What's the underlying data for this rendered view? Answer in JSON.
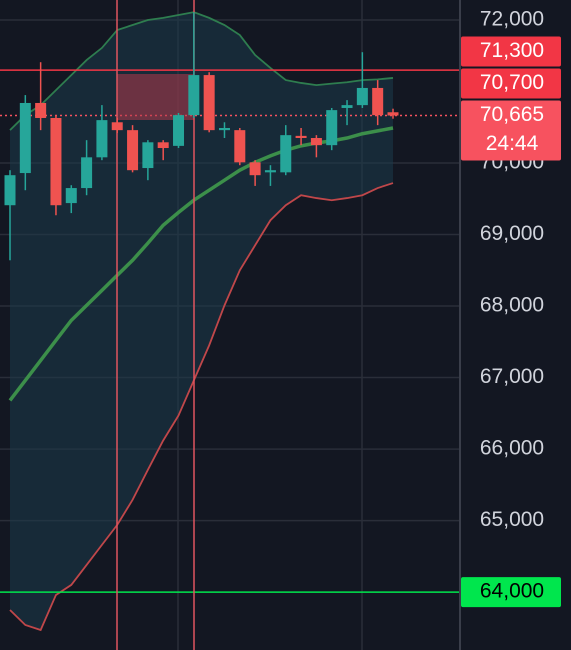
{
  "chart_data": {
    "type": "candlestick",
    "ylim": [
      63190,
      72280
    ],
    "yticks": [
      {
        "value": 72000,
        "label": "72,000"
      },
      {
        "value": 70000,
        "label": "70,000"
      },
      {
        "value": 69000,
        "label": "69,000"
      },
      {
        "value": 68000,
        "label": "68,000"
      },
      {
        "value": 67000,
        "label": "67,000"
      },
      {
        "value": 66000,
        "label": "66,000"
      },
      {
        "value": 65000,
        "label": "65,000"
      }
    ],
    "grid": true,
    "up_color": "#26a69a",
    "down_color": "#ef5350",
    "open": [
      69410,
      69860,
      70840,
      70630,
      69440,
      69650,
      70080,
      70570,
      70460,
      69930,
      70290,
      70240,
      70670,
      71230,
      70460,
      70460,
      70010,
      69870,
      69870,
      70380,
      70350,
      70250,
      70770,
      70810,
      71050,
      70710
    ],
    "high": [
      69900,
      70950,
      71410,
      70670,
      69690,
      70320,
      70810,
      70630,
      70530,
      70320,
      70320,
      70700,
      72110,
      71270,
      70570,
      70490,
      70040,
      69970,
      70530,
      70490,
      70390,
      70770,
      70880,
      71550,
      71160,
      70760
    ],
    "low": [
      68640,
      69620,
      70460,
      69270,
      69300,
      69550,
      70040,
      70420,
      69870,
      69760,
      70040,
      70210,
      70630,
      70430,
      70350,
      69970,
      69680,
      69680,
      69830,
      70250,
      70080,
      70180,
      70530,
      70770,
      70530,
      70620
    ],
    "close": [
      69830,
      70840,
      70630,
      69410,
      69650,
      70080,
      70600,
      70460,
      69900,
      70290,
      70210,
      70670,
      71230,
      70460,
      70490,
      70010,
      69830,
      69900,
      70390,
      70350,
      70250,
      70740,
      70810,
      71050,
      70670,
      70665
    ],
    "lines": [
      {
        "color": "#2e7d4f",
        "values": [
          70460,
          70670,
          70810,
          71020,
          71230,
          71440,
          71610,
          71860,
          71930,
          72000,
          72030,
          72070,
          72110,
          72030,
          71930,
          71790,
          71510,
          71330,
          71160,
          71120,
          71090,
          71110,
          71130,
          71160,
          71170,
          71190
        ]
      },
      {
        "color": "#3c8f4a",
        "values": [
          66680,
          66960,
          67240,
          67520,
          67800,
          68010,
          68220,
          68430,
          68640,
          68880,
          69130,
          69310,
          69480,
          69620,
          69760,
          69900,
          70010,
          70100,
          70180,
          70240,
          70280,
          70310,
          70350,
          70410,
          70450,
          70490
        ]
      },
      {
        "color": "#c0474a",
        "values": [
          63750,
          63540,
          63470,
          63960,
          64100,
          64380,
          64660,
          64940,
          65290,
          65710,
          66120,
          66470,
          66960,
          67450,
          68010,
          68500,
          68850,
          69200,
          69410,
          69550,
          69510,
          69480,
          69510,
          69550,
          69650,
          69720
        ]
      }
    ],
    "price_lines": [
      {
        "value": 71300,
        "label": "71,300",
        "color": "#f23645",
        "line": true
      },
      {
        "value": 70700,
        "label": "70,700",
        "color": "#f23645",
        "line": false
      },
      {
        "value": 64000,
        "label": "64,000",
        "color": "#00e64d",
        "line": true
      }
    ],
    "last_price": {
      "value": 70665,
      "label": "70,665",
      "countdown": "24:44",
      "color": "#f7525f"
    }
  }
}
